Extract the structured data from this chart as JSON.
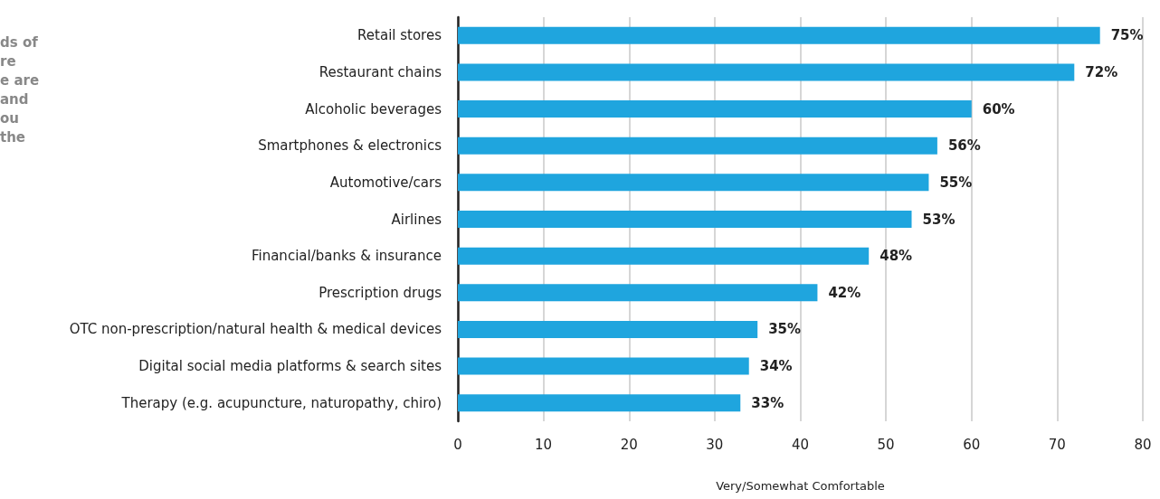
{
  "chart_data": {
    "type": "bar",
    "orientation": "horizontal",
    "xlabel": "Very/Somewhat Comfortable",
    "categories": [
      "Retail stores",
      "Restaurant chains",
      "Alcoholic beverages",
      "Smartphones & electronics",
      "Automotive/cars",
      "Airlines",
      "Financial/banks & insurance",
      "Prescription drugs",
      "OTC non-prescription/natural health & medical devices",
      "Digital social media platforms & search sites",
      "Therapy (e.g. acupuncture, naturopathy, chiro)"
    ],
    "values": [
      75,
      72,
      60,
      56,
      55,
      53,
      48,
      42,
      35,
      34,
      33
    ],
    "value_labels": [
      "75%",
      "72%",
      "60%",
      "56%",
      "55%",
      "53%",
      "48%",
      "42%",
      "35%",
      "34%",
      "33%"
    ],
    "color": "#1fa5de",
    "xlim": [
      0,
      80
    ],
    "xticks": [
      0,
      10,
      20,
      30,
      40,
      50,
      60,
      70,
      80
    ],
    "grid": "x",
    "annotations": [
      "ds of\nre\ne are\nand\nou\nthe"
    ]
  }
}
